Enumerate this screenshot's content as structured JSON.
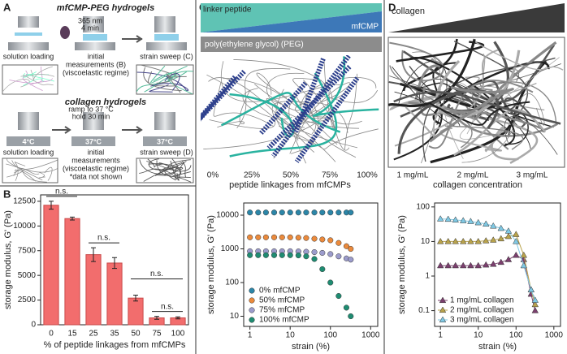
{
  "panel_labels": [
    "A",
    "B",
    "C",
    "D"
  ],
  "panel_a": {
    "title_1": "mfCMP-PEG hydrogels",
    "uv_1": "365 nm",
    "uv_2": "4 min",
    "step_1": "solution loading",
    "step_2": [
      "initial",
      "measurements (B)",
      "(viscoelastic regime)"
    ],
    "step_3": "strain sweep (C)",
    "title_2": "collagen hydrogels",
    "ramp_1": "ramp to 37 °C",
    "ramp_2": "hold 30 min",
    "temp_1": "4°C",
    "temp_2": "37°C",
    "temp_3": "37°C",
    "step_4": "solution loading",
    "step_5": [
      "initial",
      "measurements",
      "(viscoelastic regime)",
      "*data not shown"
    ],
    "step_6": "strain sweep (D)"
  },
  "panel_c": {
    "wedge_1": "linker peptide",
    "wedge_2": "mfCMP",
    "bar": "poly(ethylene glycol) (PEG)",
    "percents": [
      "0%",
      "25%",
      "50%",
      "75%",
      "100%"
    ],
    "axis_title": "peptide linkages from mfCMPs"
  },
  "panel_d": {
    "wedge": "collagen",
    "concentrations": [
      "1 mg/mL",
      "2 mg/mL",
      "3 mg/mL"
    ],
    "axis_title": "collagen concentration"
  },
  "chart_data": [
    {
      "type": "bar",
      "categories": [
        "0",
        "15",
        "25",
        "35",
        "50",
        "75",
        "100"
      ],
      "values": [
        12100,
        10750,
        7100,
        6250,
        2700,
        700,
        700
      ],
      "errors": [
        400,
        150,
        700,
        550,
        300,
        150,
        100
      ],
      "color": "#f26d6d",
      "ylim": [
        0,
        13150
      ],
      "yticks": [
        0,
        2500,
        5000,
        7500,
        10000,
        12500
      ],
      "xlabel": "% of peptide linkages from mfCMPs",
      "ylabel": "storage modulus, G' (Pa)",
      "annotations": [
        {
          "text": "n.s.",
          "from": 0,
          "to": 1
        },
        {
          "text": "n.s.",
          "from": 2,
          "to": 3
        },
        {
          "text": "n.s.",
          "from": 4,
          "to": 6
        },
        {
          "text": "n.s.",
          "from": 5,
          "to": 6
        }
      ]
    },
    {
      "type": "scatter",
      "xscale": "log",
      "yscale": "log",
      "x": [
        1,
        1.6,
        2.5,
        4,
        6.3,
        10,
        16,
        25,
        40,
        63,
        100,
        160,
        250,
        320
      ],
      "series": [
        {
          "name": "0% mfCMP",
          "color": "#2c86a8",
          "values": [
            12000,
            12000,
            12000,
            12000,
            12000,
            12000,
            12000,
            12000,
            12000,
            12000,
            12000,
            12000,
            12000,
            12000
          ]
        },
        {
          "name": "50% mfCMP",
          "color": "#eb8a3c",
          "values": [
            2200,
            2200,
            2200,
            2200,
            2200,
            2200,
            2150,
            2100,
            2000,
            1900,
            1800,
            1500,
            1200,
            1000
          ]
        },
        {
          "name": "75% mfCMP",
          "color": "#9c9ccc",
          "values": [
            850,
            850,
            850,
            850,
            850,
            850,
            840,
            820,
            800,
            760,
            700,
            600,
            520,
            480
          ]
        },
        {
          "name": "100% mfCMP",
          "color": "#1f8c72",
          "values": [
            650,
            650,
            650,
            650,
            650,
            650,
            640,
            600,
            500,
            250,
            100,
            40,
            18,
            10
          ]
        }
      ],
      "xlim": [
        0.7,
        1500
      ],
      "ylim": [
        5,
        23000
      ],
      "xticks": [
        1,
        10,
        100,
        1000
      ],
      "yticks": [
        10,
        100,
        1000,
        10000
      ],
      "xlabel": "strain (%)",
      "ylabel": "storage modulus, G' (Pa)",
      "legend": "lower-left"
    },
    {
      "type": "line",
      "xscale": "log",
      "yscale": "log",
      "x": [
        1,
        1.6,
        2.5,
        4,
        6.3,
        10,
        16,
        25,
        40,
        63,
        100,
        160,
        250,
        320
      ],
      "series": [
        {
          "name": "1 mg/mL collagen",
          "color": "#7b3f6e",
          "values": [
            2,
            2,
            2,
            2,
            2,
            2,
            2.1,
            2.2,
            2.5,
            3,
            4,
            3,
            0.3,
            0.1
          ]
        },
        {
          "name": "2 mg/mL collagen",
          "color": "#b9a34c",
          "values": [
            10,
            10,
            10,
            10,
            10,
            10,
            10.5,
            11,
            12,
            14,
            16,
            4,
            0.4,
            0.15
          ]
        },
        {
          "name": "3 mg/mL collagen",
          "color": "#80c9e4",
          "values": [
            45,
            44,
            42,
            40,
            38,
            35,
            32,
            28,
            24,
            20,
            10,
            2,
            0.4,
            0.2
          ]
        }
      ],
      "xlim": [
        0.7,
        1500
      ],
      "ylim": [
        0.035,
        130
      ],
      "xticks": [
        1,
        10,
        100,
        1000
      ],
      "yticks": [
        0.1,
        1,
        10,
        100
      ],
      "xlabel": "strain (%)",
      "ylabel": "storage modulus, G' (Pa)",
      "legend": "lower-left"
    }
  ]
}
